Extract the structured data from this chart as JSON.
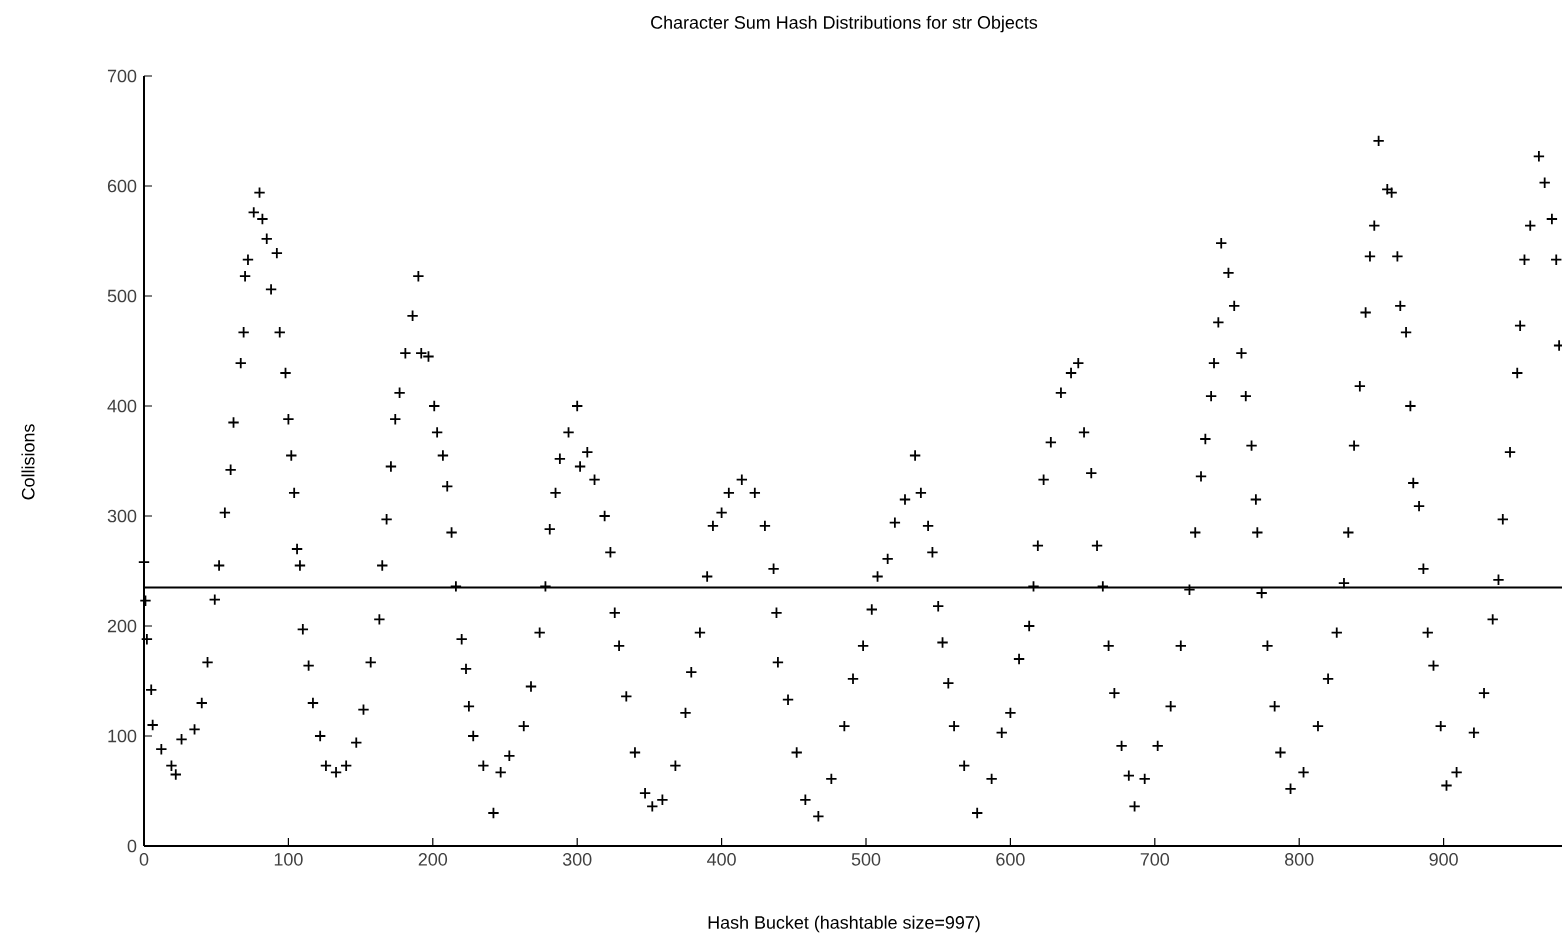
{
  "chart_data": {
    "type": "scatter",
    "title": "Character Sum Hash Distributions for str Objects",
    "xlabel": "Hash Bucket (hashtable size=997)",
    "ylabel": "Collisions",
    "xlim": [
      0,
      982
    ],
    "ylim": [
      0,
      700
    ],
    "xticks": [
      0,
      100,
      200,
      300,
      400,
      500,
      600,
      700,
      800,
      900
    ],
    "yticks": [
      0,
      100,
      200,
      300,
      400,
      500,
      600,
      700
    ],
    "marker": "cross",
    "grid": false,
    "ref_lines": [
      {
        "axis": "y",
        "value": 235,
        "color": "#000000"
      }
    ],
    "series": [
      {
        "color": "#000000",
        "x": [
          0,
          1,
          2,
          5,
          6,
          12,
          19,
          22,
          26,
          35,
          40,
          44,
          49,
          52,
          56,
          60,
          62,
          67,
          69,
          70,
          72,
          76,
          80,
          82,
          85,
          88,
          92,
          94,
          98,
          100,
          102,
          104,
          106,
          108,
          110,
          114,
          117,
          122,
          126,
          133,
          140,
          147,
          152,
          157,
          163,
          165,
          168,
          171,
          174,
          177,
          181,
          186,
          190,
          192,
          197,
          201,
          203,
          207,
          210,
          213,
          216,
          220,
          223,
          225,
          228,
          235,
          242,
          247,
          253,
          263,
          268,
          274,
          278,
          281,
          285,
          288,
          294,
          300,
          302,
          307,
          312,
          319,
          323,
          326,
          329,
          334,
          340,
          347,
          352,
          359,
          368,
          375,
          379,
          385,
          390,
          394,
          400,
          405,
          414,
          423,
          430,
          436,
          438,
          439,
          446,
          452,
          458,
          467,
          476,
          485,
          491,
          498,
          504,
          508,
          515,
          520,
          527,
          534,
          538,
          543,
          546,
          550,
          553,
          557,
          561,
          568,
          577,
          587,
          594,
          600,
          606,
          613,
          616,
          619,
          623,
          628,
          635,
          642,
          647,
          651,
          656,
          660,
          664,
          668,
          672,
          677,
          682,
          686,
          693,
          702,
          711,
          718,
          724,
          728,
          732,
          735,
          739,
          741,
          744,
          746,
          751,
          755,
          760,
          763,
          767,
          770,
          771,
          774,
          778,
          783,
          787,
          794,
          803,
          813,
          820,
          826,
          831,
          834,
          838,
          842,
          846,
          849,
          852,
          855,
          861,
          864,
          868,
          870,
          874,
          877,
          879,
          883,
          886,
          889,
          893,
          898,
          902,
          909,
          921,
          928,
          934,
          938,
          941,
          946,
          951,
          953,
          956,
          960,
          966,
          970,
          975,
          978,
          980
        ],
        "values": [
          258,
          223,
          188,
          142,
          110,
          88,
          73,
          65,
          97,
          106,
          130,
          167,
          224,
          255,
          303,
          342,
          385,
          439,
          467,
          518,
          533,
          576,
          594,
          570,
          552,
          506,
          539,
          467,
          430,
          388,
          355,
          321,
          270,
          255,
          197,
          164,
          130,
          100,
          73,
          67,
          73,
          94,
          124,
          167,
          206,
          255,
          297,
          345,
          388,
          412,
          448,
          482,
          518,
          448,
          445,
          400,
          376,
          355,
          327,
          285,
          236,
          188,
          161,
          127,
          100,
          73,
          30,
          67,
          82,
          109,
          145,
          194,
          236,
          288,
          321,
          352,
          376,
          400,
          345,
          358,
          333,
          300,
          267,
          212,
          182,
          136,
          85,
          48,
          36,
          42,
          73,
          121,
          158,
          194,
          245,
          291,
          303,
          321,
          333,
          321,
          291,
          252,
          212,
          167,
          133,
          85,
          42,
          27,
          61,
          109,
          152,
          182,
          215,
          245,
          261,
          294,
          315,
          355,
          321,
          291,
          267,
          218,
          185,
          148,
          109,
          73,
          30,
          61,
          103,
          121,
          170,
          200,
          236,
          273,
          333,
          367,
          412,
          430,
          439,
          376,
          339,
          273,
          236,
          182,
          139,
          91,
          64,
          36,
          61,
          91,
          127,
          182,
          233,
          285,
          336,
          370,
          409,
          439,
          476,
          548,
          521,
          491,
          448,
          409,
          364,
          315,
          285,
          230,
          182,
          127,
          85,
          52,
          67,
          109,
          152,
          194,
          239,
          285,
          364,
          418,
          485,
          536,
          564,
          641,
          597,
          594,
          536,
          491,
          467,
          400,
          330,
          309,
          252,
          194,
          164,
          109,
          55,
          67,
          103,
          139,
          206,
          242,
          297,
          358,
          430,
          473,
          533,
          564,
          627,
          603,
          570,
          533,
          455
        ]
      }
    ]
  }
}
